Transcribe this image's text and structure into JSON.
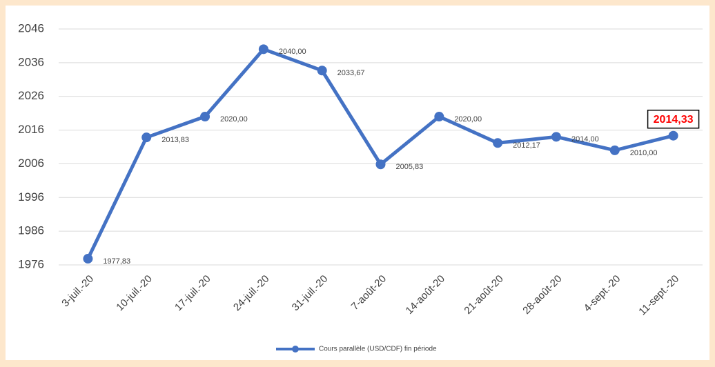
{
  "chart_data": {
    "type": "line",
    "categories": [
      "3-juil.-20",
      "10-juil.-20",
      "17-juil.-20",
      "24-juil.-20",
      "31-juil.-20",
      "7-août-20",
      "14-août-20",
      "21-août-20",
      "28-août-20",
      "4-sept.-20",
      "11-sept.-20"
    ],
    "series": [
      {
        "name": "Cours parallèle (USD/CDF) fin période",
        "color": "#4472c4",
        "values": [
          1977.83,
          2013.83,
          2020.0,
          2040.0,
          2033.67,
          2005.83,
          2020.0,
          2012.17,
          2014.0,
          2010.0,
          2014.33
        ],
        "value_labels": [
          "1977,83",
          "2013,83",
          "2020,00",
          "2040,00",
          "2033,67",
          "2005,83",
          "2020,00",
          "2012,17",
          "2014,00",
          "2010,00",
          "2014,33"
        ]
      }
    ],
    "ylim": [
      1976,
      2046
    ],
    "yticks": [
      1976,
      1986,
      1996,
      2006,
      2016,
      2026,
      2036,
      2046
    ],
    "grid": true,
    "legend": "bottom"
  }
}
